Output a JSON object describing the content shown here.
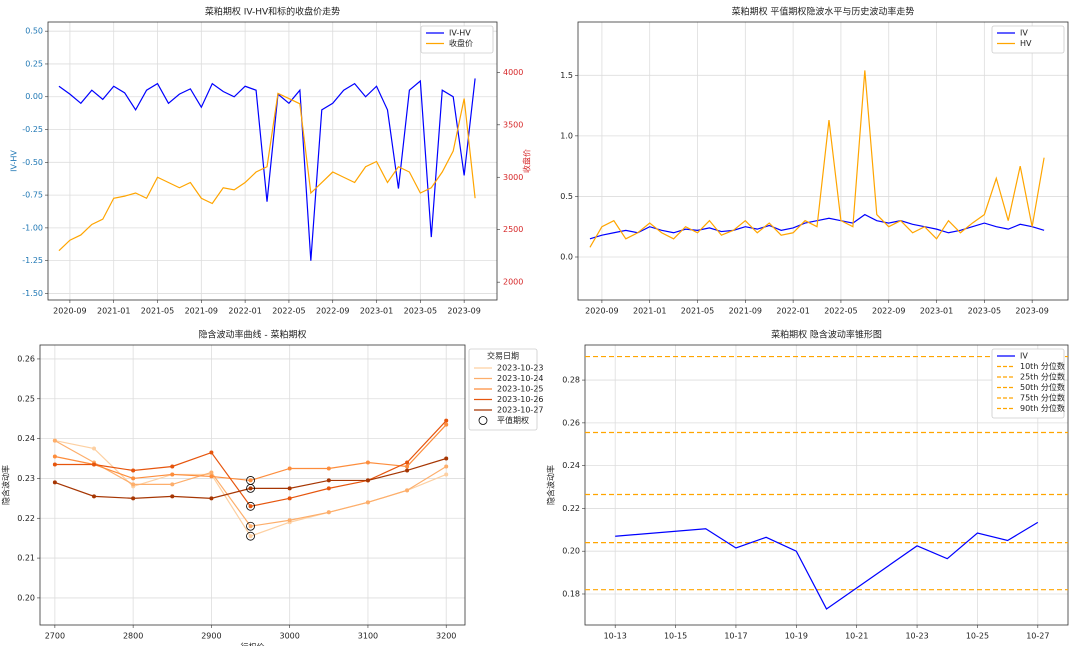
{
  "chart_data": [
    {
      "type": "line",
      "title": "菜粕期权 IV-HV和标的收盘价走势",
      "ylabel": "IV-HV",
      "y2label": "收盘价",
      "ytick_color": "#1f77b4",
      "y2tick_color": "#d62728",
      "legend": "upper right",
      "grid": true,
      "x": [
        "2020-08",
        "2020-09",
        "2020-10",
        "2020-11",
        "2020-12",
        "2021-01",
        "2021-02",
        "2021-03",
        "2021-04",
        "2021-05",
        "2021-06",
        "2021-07",
        "2021-08",
        "2021-09",
        "2021-10",
        "2021-11",
        "2021-12",
        "2022-01",
        "2022-02",
        "2022-03",
        "2022-04",
        "2022-05",
        "2022-06",
        "2022-07",
        "2022-08",
        "2022-09",
        "2022-10",
        "2022-11",
        "2022-12",
        "2023-01",
        "2023-02",
        "2023-03",
        "2023-04",
        "2023-05",
        "2023-06",
        "2023-07",
        "2023-08",
        "2023-09",
        "2023-10"
      ],
      "xlim": [
        "2020-07",
        "2023-12"
      ],
      "xticks": [
        "2020-09",
        "2021-01",
        "2021-05",
        "2021-09",
        "2022-01",
        "2022-05",
        "2022-09",
        "2023-01",
        "2023-05",
        "2023-09"
      ],
      "ylim": [
        -1.55,
        0.57
      ],
      "yticks": [
        {
          "value": -1.5,
          "label": "-1.50"
        },
        {
          "value": -1.25,
          "label": "-1.25"
        },
        {
          "value": -1,
          "label": "-1.00"
        },
        {
          "value": -0.75,
          "label": "-0.75"
        },
        {
          "value": -0.5,
          "label": "-0.50"
        },
        {
          "value": -0.25,
          "label": "-0.25"
        },
        {
          "value": 0,
          "label": "0.00"
        },
        {
          "value": 0.25,
          "label": "0.25"
        },
        {
          "value": 0.5,
          "label": "0.50"
        }
      ],
      "y2lim": [
        1830,
        4480
      ],
      "y2ticks": [
        2000,
        2500,
        3000,
        3500,
        4000
      ],
      "series": [
        {
          "name": "IV-HV",
          "color": "#0000ff",
          "values": [
            0.08,
            0.02,
            -0.05,
            0.05,
            -0.02,
            0.08,
            0.03,
            -0.1,
            0.05,
            0.1,
            -0.05,
            0.02,
            0.06,
            -0.08,
            0.1,
            0.04,
            0.0,
            0.08,
            0.05,
            -0.8,
            0.02,
            -0.05,
            0.05,
            -1.25,
            -0.1,
            -0.05,
            0.05,
            0.1,
            0.0,
            0.08,
            -0.1,
            -0.7,
            0.05,
            0.12,
            -1.07,
            0.05,
            0.0,
            -0.6,
            0.14
          ]
        },
        {
          "name": "收盘价",
          "color": "#ffa500",
          "axis": "y2",
          "values": [
            2300,
            2400,
            2450,
            2550,
            2600,
            2800,
            2820,
            2850,
            2800,
            3000,
            2950,
            2900,
            2950,
            2800,
            2750,
            2900,
            2880,
            2950,
            3050,
            3100,
            3800,
            3750,
            3700,
            2850,
            2950,
            3050,
            3000,
            2950,
            3100,
            3150,
            2950,
            3100,
            3050,
            2850,
            2900,
            3050,
            3250,
            3750,
            2800
          ]
        }
      ]
    },
    {
      "type": "line",
      "title": "菜粕期权 平值期权隐波水平与历史波动率走势",
      "legend": "upper right",
      "grid": true,
      "x": [
        "2020-08",
        "2020-09",
        "2020-10",
        "2020-11",
        "2020-12",
        "2021-01",
        "2021-02",
        "2021-03",
        "2021-04",
        "2021-05",
        "2021-06",
        "2021-07",
        "2021-08",
        "2021-09",
        "2021-10",
        "2021-11",
        "2021-12",
        "2022-01",
        "2022-02",
        "2022-03",
        "2022-04",
        "2022-05",
        "2022-06",
        "2022-07",
        "2022-08",
        "2022-09",
        "2022-10",
        "2022-11",
        "2022-12",
        "2023-01",
        "2023-02",
        "2023-03",
        "2023-04",
        "2023-05",
        "2023-06",
        "2023-07",
        "2023-08",
        "2023-09",
        "2023-10"
      ],
      "xlim": [
        "2020-07",
        "2023-12"
      ],
      "xticks": [
        "2020-09",
        "2021-01",
        "2021-05",
        "2021-09",
        "2022-01",
        "2022-05",
        "2022-09",
        "2023-01",
        "2023-05",
        "2023-09"
      ],
      "ylim": [
        -0.355,
        1.94
      ],
      "yticks": [
        {
          "value": 0,
          "label": "0.0"
        },
        0.5,
        {
          "value": 1,
          "label": "1.0"
        },
        1.5
      ],
      "series": [
        {
          "name": "IV",
          "color": "#0000ff",
          "values": [
            0.15,
            0.18,
            0.2,
            0.22,
            0.2,
            0.25,
            0.22,
            0.2,
            0.23,
            0.22,
            0.24,
            0.21,
            0.22,
            0.25,
            0.23,
            0.26,
            0.22,
            0.24,
            0.28,
            0.3,
            0.32,
            0.3,
            0.28,
            0.35,
            0.3,
            0.28,
            0.3,
            0.27,
            0.25,
            0.23,
            0.2,
            0.22,
            0.25,
            0.28,
            0.25,
            0.23,
            0.27,
            0.25,
            0.22
          ]
        },
        {
          "name": "HV",
          "color": "#ffa500",
          "values": [
            0.08,
            0.25,
            0.3,
            0.15,
            0.2,
            0.28,
            0.2,
            0.15,
            0.25,
            0.2,
            0.3,
            0.18,
            0.22,
            0.3,
            0.2,
            0.28,
            0.18,
            0.2,
            0.3,
            0.25,
            1.13,
            0.3,
            0.25,
            1.54,
            0.35,
            0.25,
            0.3,
            0.2,
            0.25,
            0.15,
            0.3,
            0.2,
            0.28,
            0.35,
            0.65,
            0.3,
            0.75,
            0.25,
            0.82
          ]
        }
      ]
    },
    {
      "type": "line",
      "title": "隐含波动率曲线 - 菜粕期权",
      "xlabel": "行权价",
      "ylabel": "隐含波动率",
      "legend": "outside right",
      "legend_title": "交易日期",
      "grid": true,
      "marker": "o",
      "atm_x": 2950,
      "atm_label": "平值期权",
      "x": [
        2700,
        2750,
        2800,
        2850,
        2900,
        2950,
        3000,
        3050,
        3100,
        3150,
        3200
      ],
      "xlim": [
        2681,
        3224
      ],
      "xticks": [
        2700,
        2800,
        2900,
        3000,
        3100,
        3200
      ],
      "ylim": [
        0.1932,
        0.2635
      ],
      "yticks": [
        {
          "value": 0.2,
          "label": "0.20"
        },
        0.21,
        0.22,
        0.23,
        0.24,
        0.25,
        0.26
      ],
      "series": [
        {
          "name": "2023-10-23",
          "color": "#fdd0a2",
          "values": [
            0.2395,
            0.2375,
            0.228,
            0.231,
            0.231,
            0.2155,
            0.219,
            0.2215,
            0.224,
            0.227,
            0.231
          ]
        },
        {
          "name": "2023-10-24",
          "color": "#fdae6b",
          "values": [
            0.2395,
            0.234,
            0.2285,
            0.2285,
            0.2315,
            0.218,
            0.2195,
            0.2215,
            0.224,
            0.227,
            0.233
          ]
        },
        {
          "name": "2023-10-25",
          "color": "#fd8d3c",
          "values": [
            0.2355,
            0.2335,
            0.23,
            0.231,
            0.2305,
            0.2295,
            0.2325,
            0.2325,
            0.234,
            0.233,
            0.2435
          ]
        },
        {
          "name": "2023-10-26",
          "color": "#e6550d",
          "values": [
            0.2335,
            0.2335,
            0.232,
            0.233,
            0.2365,
            0.223,
            0.225,
            0.2275,
            0.2295,
            0.234,
            0.2445
          ]
        },
        {
          "name": "2023-10-27",
          "color": "#a63603",
          "values": [
            0.229,
            0.2255,
            0.225,
            0.2255,
            0.225,
            0.2275,
            0.2275,
            0.2295,
            0.2295,
            0.232,
            0.235
          ]
        }
      ]
    },
    {
      "type": "line",
      "title": "菜粕期权 隐含波动率锥形图",
      "ylabel": "隐含波动率",
      "legend": "upper right",
      "grid": true,
      "x": [
        "10-13",
        "10-16",
        "10-17",
        "10-18",
        "10-19",
        "10-20",
        "10-23",
        "10-24",
        "10-25",
        "10-26",
        "10-27"
      ],
      "xlim": [
        "10-12",
        "10-28"
      ],
      "xticks": [
        "10-13",
        "10-15",
        "10-17",
        "10-19",
        "10-21",
        "10-23",
        "10-25",
        "10-27"
      ],
      "ylim": [
        0.1655,
        0.2964
      ],
      "yticks": [
        0.18,
        {
          "value": 0.2,
          "label": "0.20"
        },
        0.22,
        0.24,
        0.26,
        0.28
      ],
      "series": [
        {
          "name": "IV",
          "color": "#0000ff",
          "values": [
            0.207,
            0.2105,
            0.2015,
            0.2065,
            0.2,
            0.173,
            0.2025,
            0.1965,
            0.2085,
            0.205,
            0.2135
          ]
        }
      ],
      "hlines": [
        {
          "name": "10th 分位数",
          "value": 0.182,
          "color": "#ffa500"
        },
        {
          "name": "25th 分位数",
          "value": 0.204,
          "color": "#ffa500"
        },
        {
          "name": "50th 分位数",
          "value": 0.2265,
          "color": "#ffa500"
        },
        {
          "name": "75th 分位数",
          "value": 0.2555,
          "color": "#ffa500"
        },
        {
          "name": "90th 分位数",
          "value": 0.291,
          "color": "#ffa500"
        }
      ]
    }
  ]
}
